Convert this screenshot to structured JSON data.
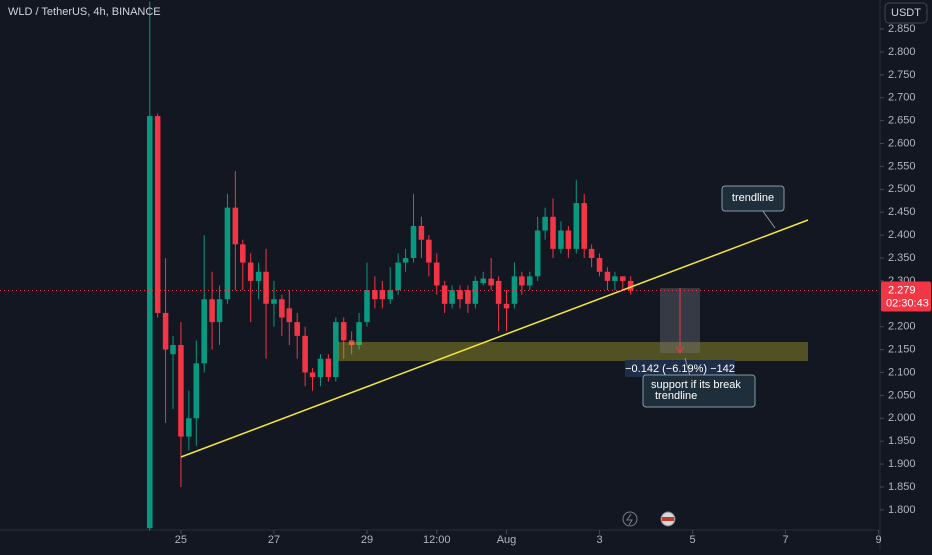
{
  "chart_data": {
    "type": "candlestick",
    "title": "WLD / TetherUS, 4h, BINANCE",
    "currency": "USDT",
    "up_color": "#089981",
    "down_color": "#f23645",
    "x": [
      24.33,
      24.5,
      24.67,
      24.83,
      25,
      25.17,
      25.33,
      25.5,
      25.67,
      25.83,
      26,
      26.17,
      26.33,
      26.5,
      26.67,
      26.83,
      27,
      27.17,
      27.33,
      27.5,
      27.67,
      27.83,
      28,
      28.17,
      28.33,
      28.5,
      28.67,
      28.83,
      29,
      29.17,
      29.33,
      29.5,
      29.67,
      29.83,
      30,
      30.17,
      30.33,
      30.5,
      30.67,
      30.83,
      31,
      31.17,
      31.33,
      31.5,
      31.67,
      31.83,
      32,
      32.17,
      32.33,
      32.5,
      32.67,
      32.83,
      33,
      33.17,
      33.33,
      33.5,
      33.67,
      33.83,
      34,
      34.17,
      34.33,
      34.5,
      34.67
    ],
    "open": [
      1.76,
      2.66,
      2.23,
      2.14,
      2.16,
      1.96,
      2.0,
      2.12,
      2.26,
      2.21,
      2.26,
      2.46,
      2.38,
      2.34,
      2.3,
      2.32,
      2.25,
      2.26,
      2.24,
      2.21,
      2.18,
      2.1,
      2.09,
      2.13,
      2.09,
      2.21,
      2.17,
      2.16,
      2.21,
      2.28,
      2.28,
      2.26,
      2.28,
      2.34,
      2.35,
      2.42,
      2.39,
      2.34,
      2.29,
      2.25,
      2.28,
      2.28,
      2.25,
      2.295,
      2.305,
      2.3,
      2.25,
      2.25,
      2.31,
      2.29,
      2.31,
      2.41,
      2.44,
      2.37,
      2.41,
      2.37,
      2.47,
      2.37,
      2.35,
      2.32,
      2.3,
      2.31,
      2.3
    ],
    "high": [
      2.91,
      2.665,
      2.35,
      2.18,
      2.21,
      2.06,
      2.17,
      2.4,
      2.32,
      2.29,
      2.49,
      2.54,
      2.39,
      2.36,
      2.34,
      2.37,
      2.3,
      2.27,
      2.28,
      2.23,
      2.2,
      2.11,
      2.14,
      2.14,
      2.22,
      2.22,
      2.19,
      2.23,
      2.34,
      2.31,
      2.3,
      2.33,
      2.36,
      2.37,
      2.49,
      2.44,
      2.4,
      2.36,
      2.3,
      2.29,
      2.29,
      2.29,
      2.31,
      2.32,
      2.35,
      2.31,
      2.28,
      2.34,
      2.32,
      2.32,
      2.44,
      2.46,
      2.48,
      2.43,
      2.42,
      2.52,
      2.49,
      2.38,
      2.36,
      2.33,
      2.32,
      2.31,
      2.31
    ],
    "low": [
      1.755,
      2.22,
      1.99,
      2.02,
      1.85,
      1.93,
      1.94,
      2.1,
      2.15,
      2.16,
      2.25,
      2.28,
      2.28,
      2.21,
      2.26,
      2.13,
      2.2,
      2.18,
      2.16,
      2.13,
      2.07,
      2.06,
      2.07,
      2.08,
      2.08,
      2.13,
      2.14,
      2.15,
      2.2,
      2.24,
      2.24,
      2.25,
      2.27,
      2.32,
      2.34,
      2.35,
      2.31,
      2.27,
      2.23,
      2.24,
      2.24,
      2.23,
      2.24,
      2.29,
      2.28,
      2.19,
      2.19,
      2.24,
      2.27,
      2.28,
      2.3,
      2.39,
      2.35,
      2.36,
      2.35,
      2.36,
      2.35,
      2.33,
      2.31,
      2.28,
      2.28,
      2.28,
      2.27
    ],
    "close": [
      2.66,
      2.23,
      2.15,
      2.16,
      1.96,
      2.0,
      2.12,
      2.26,
      2.21,
      2.26,
      2.46,
      2.38,
      2.34,
      2.3,
      2.32,
      2.25,
      2.26,
      2.22,
      2.21,
      2.18,
      2.1,
      2.09,
      2.13,
      2.09,
      2.21,
      2.17,
      2.16,
      2.21,
      2.28,
      2.26,
      2.26,
      2.28,
      2.34,
      2.35,
      2.42,
      2.39,
      2.34,
      2.29,
      2.25,
      2.28,
      2.26,
      2.25,
      2.3,
      2.305,
      2.29,
      2.25,
      2.24,
      2.31,
      2.29,
      2.31,
      2.41,
      2.44,
      2.37,
      2.41,
      2.37,
      2.47,
      2.37,
      2.35,
      2.32,
      2.3,
      2.31,
      2.3,
      2.279
    ],
    "xlim": [
      21.11,
      40.03
    ],
    "xticks": [
      {
        "value": 25,
        "label": "25"
      },
      {
        "value": 27,
        "label": "27"
      },
      {
        "value": 29,
        "label": "29"
      },
      {
        "value": 30.5,
        "label": "12:00"
      },
      {
        "value": 32,
        "label": "Aug"
      },
      {
        "value": 34,
        "label": "3"
      },
      {
        "value": 36,
        "label": "5"
      },
      {
        "value": 38,
        "label": "7"
      },
      {
        "value": 40,
        "label": "9"
      }
    ],
    "ylim": [
      1.756,
      2.9135
    ],
    "yticks": [
      {
        "value": 1.8,
        "label": "1.800"
      },
      {
        "value": 1.85,
        "label": "1.850"
      },
      {
        "value": 1.9,
        "label": "1.900"
      },
      {
        "value": 1.95,
        "label": "1.950"
      },
      {
        "value": 2,
        "label": "2.000"
      },
      {
        "value": 2.05,
        "label": "2.050"
      },
      {
        "value": 2.1,
        "label": "2.100"
      },
      {
        "value": 2.15,
        "label": "2.150"
      },
      {
        "value": 2.2,
        "label": "2.200"
      },
      {
        "value": 2.3,
        "label": "2.300"
      },
      {
        "value": 2.35,
        "label": "2.350"
      },
      {
        "value": 2.4,
        "label": "2.400"
      },
      {
        "value": 2.45,
        "label": "2.450"
      },
      {
        "value": 2.5,
        "label": "2.500"
      },
      {
        "value": 2.55,
        "label": "2.550"
      },
      {
        "value": 2.6,
        "label": "2.600"
      },
      {
        "value": 2.65,
        "label": "2.650"
      },
      {
        "value": 2.7,
        "label": "2.700"
      },
      {
        "value": 2.75,
        "label": "2.750"
      },
      {
        "value": 2.8,
        "label": "2.800"
      },
      {
        "value": 2.85,
        "label": "2.850"
      }
    ],
    "last_price": 2.279,
    "countdown": "02:30:43",
    "annotations": {
      "trendline_label": "trendline",
      "support_label": [
        "support if its break",
        "trendline"
      ],
      "measure_label": "−0.142 (−6.19%) −142"
    }
  }
}
